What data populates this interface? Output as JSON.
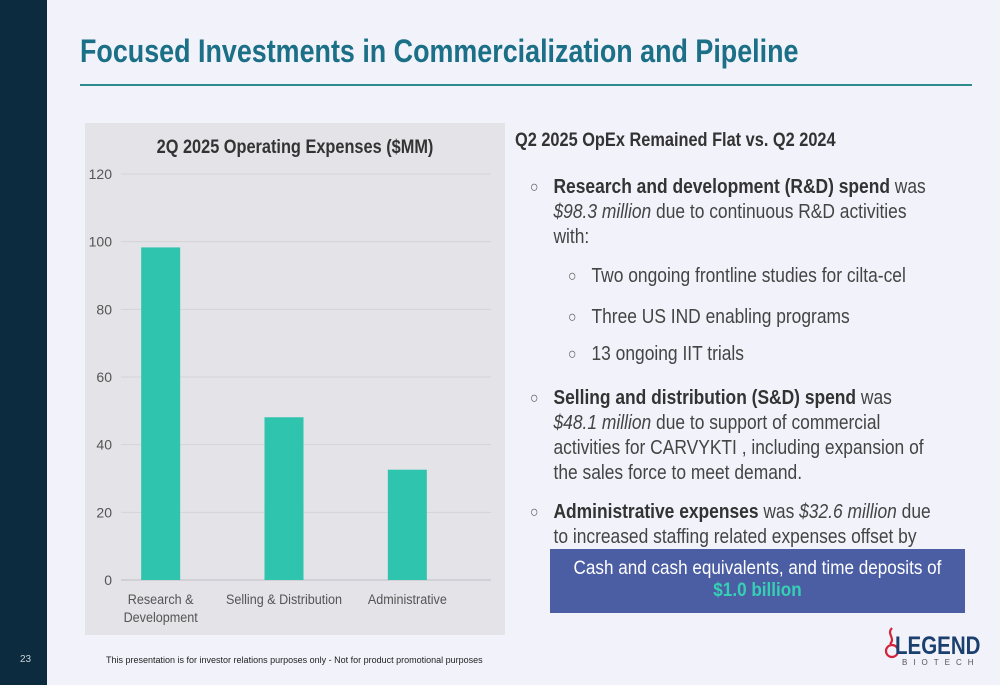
{
  "page_number": "23",
  "title": "Focused Investments in Commercialization and Pipeline",
  "chart_data": {
    "type": "bar",
    "title": "2Q 2025 Operating Expenses ($MM)",
    "categories": [
      [
        "Research &",
        "Development"
      ],
      [
        "Selling & Distribution"
      ],
      [
        "Administrative"
      ]
    ],
    "values": [
      98.3,
      48.1,
      32.6
    ],
    "ylim": [
      0,
      120
    ],
    "yticks": [
      0,
      20,
      40,
      60,
      80,
      100,
      120
    ],
    "grid": true,
    "bar_color": "#2ec4ad"
  },
  "subhead": "Q2 2025 OpEx Remained Flat vs. Q2 2024",
  "bullets": {
    "rd": {
      "bold": "Research and development (R&D) spend",
      "mid": " was ",
      "ital": "$98.3 million",
      "rest": " due to continuous R&D activities with:"
    },
    "sub": [
      "Two ongoing frontline studies for cilta-cel",
      "Three US IND enabling programs",
      "13 ongoing IIT trials"
    ],
    "sd": {
      "bold": "Selling and distribution (S&D) spend",
      "mid": " was ",
      "ital": "$48.1 million",
      "rest": " due to support of commercial activities for CARVYKTI , including expansion of the sales force to meet demand."
    },
    "admin": {
      "bold": "Administrative expenses",
      "mid": " was ",
      "ital": "$32.6 million",
      "rest": " due to increased staffing related expenses offset by lower infrastructure expenses."
    },
    "mark": "○"
  },
  "cash_box": {
    "line1": "Cash and cash equivalents, and time deposits of",
    "line2": "$1.0 billion"
  },
  "footer": "This presentation is for investor relations purposes only - Not for product promotional purposes",
  "logo": {
    "word": "LEGEND",
    "sub": "BIOTECH"
  },
  "colors": {
    "sidebar": "#0c2b3e",
    "title": "#1b6f86",
    "accent_teal": "#2ec4ad",
    "box": "#4b5da3"
  }
}
